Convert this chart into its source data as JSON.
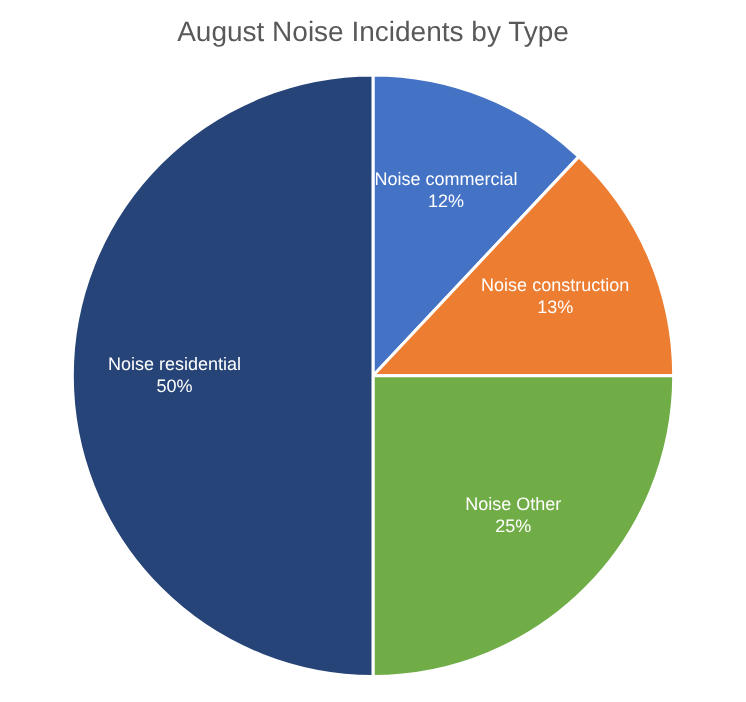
{
  "chart_data": {
    "type": "pie",
    "title": "August Noise Incidents by Type",
    "categories": [
      "Noise commercial",
      "Noise construction",
      "Noise Other",
      "Noise residential"
    ],
    "values": [
      12,
      13,
      25,
      50
    ],
    "value_labels": [
      "12%",
      "13%",
      "25%",
      "50%"
    ],
    "colors": [
      "#4472c4",
      "#ed7d31",
      "#70ad47",
      "#264478"
    ],
    "legend": false
  }
}
